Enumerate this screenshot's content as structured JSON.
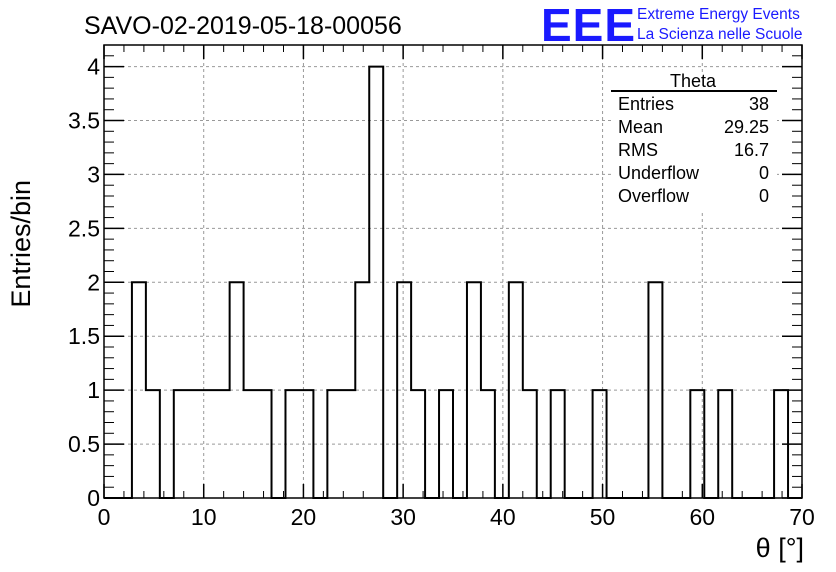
{
  "title": "SAVO-02-2019-05-18-00056",
  "logo": {
    "mark": "EEE",
    "line1": "Extreme Energy Events",
    "line2": "La Scienza nelle Scuole",
    "color": "#1a1aff"
  },
  "stats": {
    "name": "Theta",
    "rows": [
      {
        "label": "Entries",
        "value": "38"
      },
      {
        "label": "Mean",
        "value": "29.25"
      },
      {
        "label": "RMS",
        "value": "16.7"
      },
      {
        "label": "Underflow",
        "value": "0"
      },
      {
        "label": "Overflow",
        "value": "0"
      }
    ]
  },
  "chart_data": {
    "type": "bar",
    "style": "step-histogram",
    "xlabel": "θ [°]",
    "ylabel": "Entries/bin",
    "xlim": [
      0,
      70
    ],
    "ylim": [
      0,
      4.2
    ],
    "grid": true,
    "x_ticks": [
      0,
      10,
      20,
      30,
      40,
      50,
      60,
      70
    ],
    "x_tick_labels": [
      "0",
      "10",
      "20",
      "30",
      "40",
      "50",
      "60",
      "70"
    ],
    "y_ticks": [
      0,
      0.5,
      1,
      1.5,
      2,
      2.5,
      3,
      3.5,
      4
    ],
    "y_tick_labels": [
      "0",
      "0.5",
      "1",
      "1.5",
      "2",
      "2.5",
      "3",
      "3.5",
      "4"
    ],
    "bin_width": 1.4,
    "bin_low_edges": [
      0,
      1.4,
      2.8,
      4.2,
      5.6,
      7.0,
      8.4,
      9.8,
      11.2,
      12.6,
      14.0,
      15.4,
      16.8,
      18.2,
      19.6,
      21.0,
      22.4,
      23.8,
      25.2,
      26.6,
      28.0,
      29.4,
      30.8,
      32.2,
      33.6,
      35.0,
      36.4,
      37.8,
      39.2,
      40.6,
      42.0,
      43.4,
      44.8,
      46.2,
      47.6,
      49.0,
      50.4,
      51.8,
      53.2,
      54.6,
      56.0,
      57.4,
      58.8,
      60.2,
      61.6,
      63.0,
      64.4,
      65.8,
      67.2,
      68.6
    ],
    "values": [
      0,
      0,
      2,
      1,
      0,
      1,
      1,
      1,
      1,
      2,
      1,
      1,
      0,
      1,
      1,
      0,
      1,
      1,
      2,
      4,
      0,
      2,
      1,
      0,
      1,
      0,
      2,
      1,
      0,
      2,
      1,
      0,
      1,
      0,
      0,
      1,
      0,
      0,
      0,
      2,
      0,
      0,
      1,
      0,
      1,
      0,
      0,
      0,
      1,
      0
    ]
  }
}
